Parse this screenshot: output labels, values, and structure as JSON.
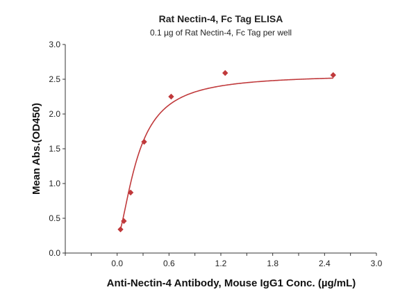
{
  "chart_data": {
    "type": "scatter",
    "title": "Rat Nectin-4, Fc Tag ELISA",
    "subtitle": "0.1 µg of Rat Nectin-4, Fc Tag per well",
    "xlabel": "Anti-Nectin-4 Antibody, Mouse IgG1 Conc. (µg/mL)",
    "ylabel": "Mean Abs.(OD450)",
    "xlim": [
      -0.6,
      3.0
    ],
    "ylim": [
      0.0,
      3.0
    ],
    "x_ticks": [
      "0.0",
      "0.6",
      "1.2",
      "1.8",
      "2.4",
      "3.0"
    ],
    "y_ticks": [
      "0.0",
      "0.5",
      "1.0",
      "1.5",
      "2.0",
      "2.5",
      "3.0"
    ],
    "x_tick_values": [
      0.0,
      0.6,
      1.2,
      1.8,
      2.4,
      3.0
    ],
    "y_tick_values": [
      0.0,
      0.5,
      1.0,
      1.5,
      2.0,
      2.5,
      3.0
    ],
    "series": [
      {
        "x": [
          0.039,
          0.078,
          0.156,
          0.3125,
          0.625,
          1.25,
          2.5
        ],
        "y": [
          0.34,
          0.46,
          0.87,
          1.6,
          2.25,
          2.59,
          2.56
        ],
        "marker": "diamond",
        "fit": "4PL"
      }
    ],
    "grid": false,
    "colors": {
      "series": "#c0393b",
      "axis": "#333333"
    }
  }
}
